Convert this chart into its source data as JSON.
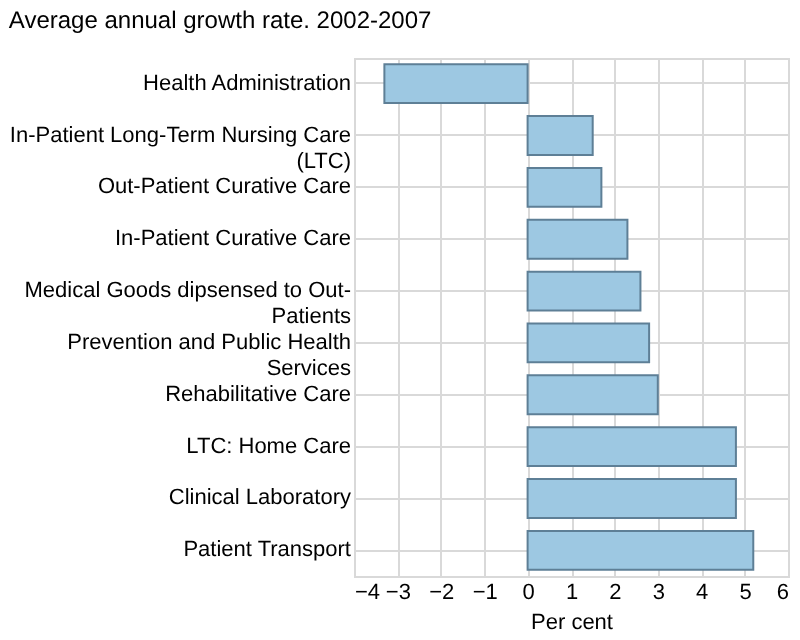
{
  "chart_data": {
    "type": "bar",
    "orientation": "horizontal",
    "title": "Average annual growth rate. 2002-2007",
    "xlabel": "Per cent",
    "categories": [
      "Health Administration",
      "In-Patient Long-Term Nursing Care (LTC)",
      "Out-Patient Curative Care",
      "In-Patient Curative Care",
      "Medical Goods dipsensed to Out-Patients",
      "Prevention and Public Health Services",
      "Rehabilitative Care",
      "LTC: Home Care",
      "Clinical Laboratory",
      "Patient Transport"
    ],
    "values": [
      -3.3,
      1.5,
      1.7,
      2.3,
      2.6,
      2.8,
      3.0,
      4.8,
      4.8,
      5.2
    ],
    "color": "#9dc8e2",
    "xlim": [
      -4,
      6
    ],
    "xticks": [
      -4,
      -3,
      -2,
      -1,
      0,
      1,
      2,
      3,
      4,
      5,
      6
    ],
    "grid": true
  }
}
